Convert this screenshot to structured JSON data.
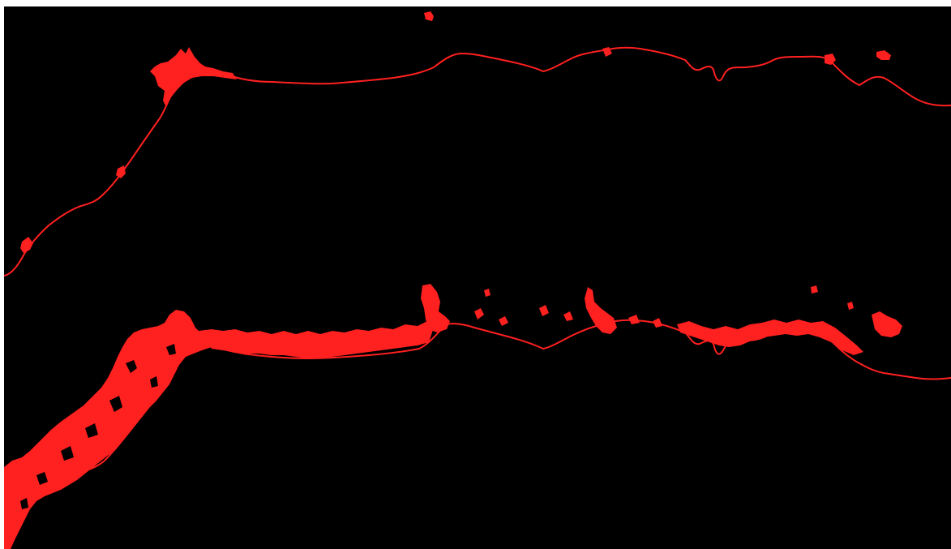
{
  "image": {
    "background_color": "#000000",
    "frame_color": "#ffffff",
    "mask_color": "#ff2020",
    "panels": [
      {
        "label": "",
        "description_key": "coastline-outline"
      },
      {
        "label": "",
        "description_key": "coastline-with-settlements"
      }
    ]
  }
}
